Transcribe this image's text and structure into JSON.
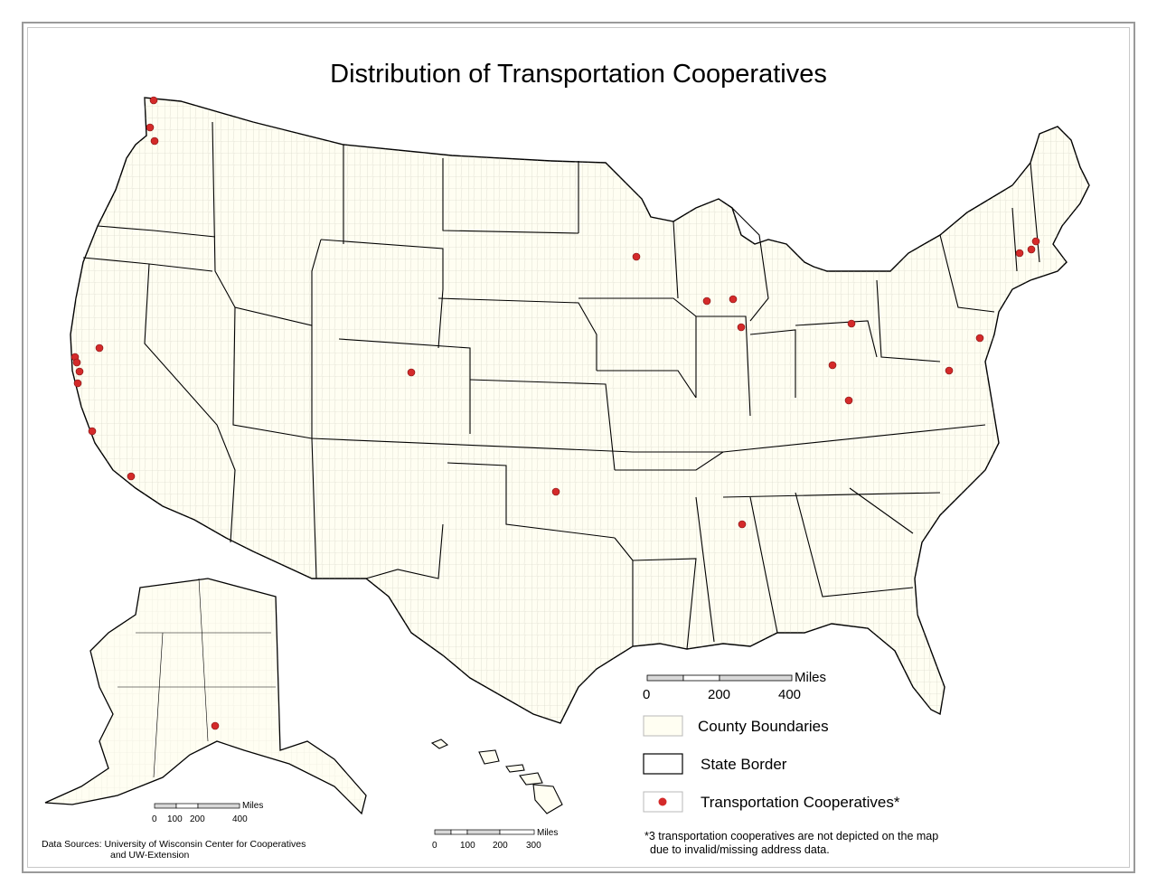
{
  "map": {
    "title": "Distribution of Transportation Cooperatives",
    "colors": {
      "land": "#fffef2",
      "county_line": "#9c9c8c",
      "state_line": "#000000",
      "point": "#d42a2a",
      "frame": "#9a9a9a"
    }
  },
  "legend": {
    "county": "County Boundaries",
    "state": "State Border",
    "coops": "Transportation Cooperatives*"
  },
  "scale_main": {
    "unit": "Miles",
    "ticks": [
      "0",
      "200",
      "400"
    ]
  },
  "scale_alaska": {
    "unit": "Miles",
    "ticks": [
      "0",
      "100",
      "200",
      "400"
    ]
  },
  "scale_hawaii": {
    "unit": "Miles",
    "ticks": [
      "0",
      "100",
      "200",
      "300"
    ]
  },
  "note": {
    "line1": "*3 transportation cooperatives are not depicted on the map",
    "line2": "due to invalid/missing address data."
  },
  "sources": {
    "line1": "Data Sources: University of Wisconsin Center for Cooperatives",
    "line2": "and UW-Extension"
  }
}
